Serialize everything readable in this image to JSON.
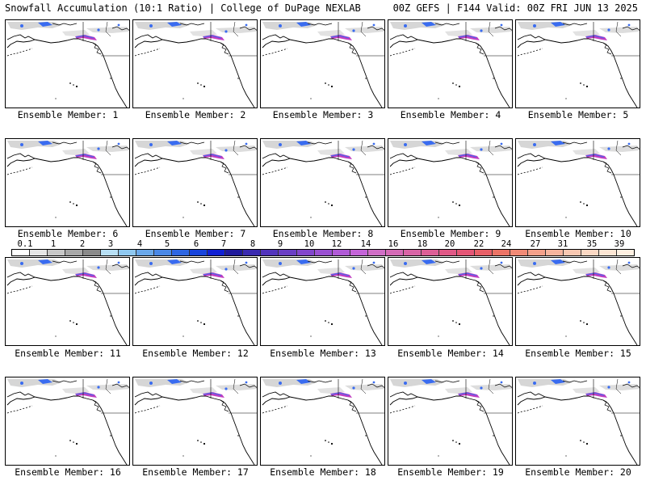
{
  "header": {
    "left": "Snowfall Accumulation (10:1 Ratio) | College of DuPage NEXLAB",
    "right": "00Z GEFS | F144 Valid: 00Z FRI JUN 13 2025"
  },
  "panels": [
    {
      "label": "Ensemble Member: 1"
    },
    {
      "label": "Ensemble Member: 2"
    },
    {
      "label": "Ensemble Member: 3"
    },
    {
      "label": "Ensemble Member: 4"
    },
    {
      "label": "Ensemble Member: 5"
    },
    {
      "label": "Ensemble Member: 6"
    },
    {
      "label": "Ensemble Member: 7"
    },
    {
      "label": "Ensemble Member: 8"
    },
    {
      "label": "Ensemble Member: 9"
    },
    {
      "label": "Ensemble Member: 10"
    },
    {
      "label": "Ensemble Member: 11"
    },
    {
      "label": "Ensemble Member: 12"
    },
    {
      "label": "Ensemble Member: 13"
    },
    {
      "label": "Ensemble Member: 14"
    },
    {
      "label": "Ensemble Member: 15"
    },
    {
      "label": "Ensemble Member: 16"
    },
    {
      "label": "Ensemble Member: 17"
    },
    {
      "label": "Ensemble Member: 18"
    },
    {
      "label": "Ensemble Member: 19"
    },
    {
      "label": "Ensemble Member: 20"
    }
  ],
  "colorbar": {
    "labels": [
      "0.1",
      "1",
      "2",
      "3",
      "4",
      "5",
      "6",
      "7",
      "8",
      "9",
      "10",
      "12",
      "14",
      "16",
      "18",
      "20",
      "22",
      "24",
      "27",
      "31",
      "35",
      "39"
    ],
    "colors": [
      "#ffffff",
      "#e6e6e6",
      "#c8c8c8",
      "#a8a8a8",
      "#8a8a8a",
      "#b8e0f5",
      "#8fc8f0",
      "#6aa8ea",
      "#4a88e6",
      "#2e66e2",
      "#1844dc",
      "#1020d4",
      "#201a9c",
      "#3a2ab0",
      "#5234bc",
      "#6a3ec4",
      "#8246cc",
      "#9a50d2",
      "#b05ad6",
      "#c464d8",
      "#d06ec6",
      "#d46ab6",
      "#d864a6",
      "#dc5e96",
      "#e05886",
      "#e45676",
      "#e86068",
      "#ec7466",
      "#f08a76",
      "#f3a08a",
      "#f6b49e",
      "#f9c8b2",
      "#fbd8c4",
      "#fde6d4",
      "#fff0e2"
    ]
  },
  "map_colors": {
    "snow_light": "#cfcfcf",
    "snow_blue": "#3a6cf0",
    "snow_heavy": "#c03cc0",
    "coast": "#000000"
  }
}
